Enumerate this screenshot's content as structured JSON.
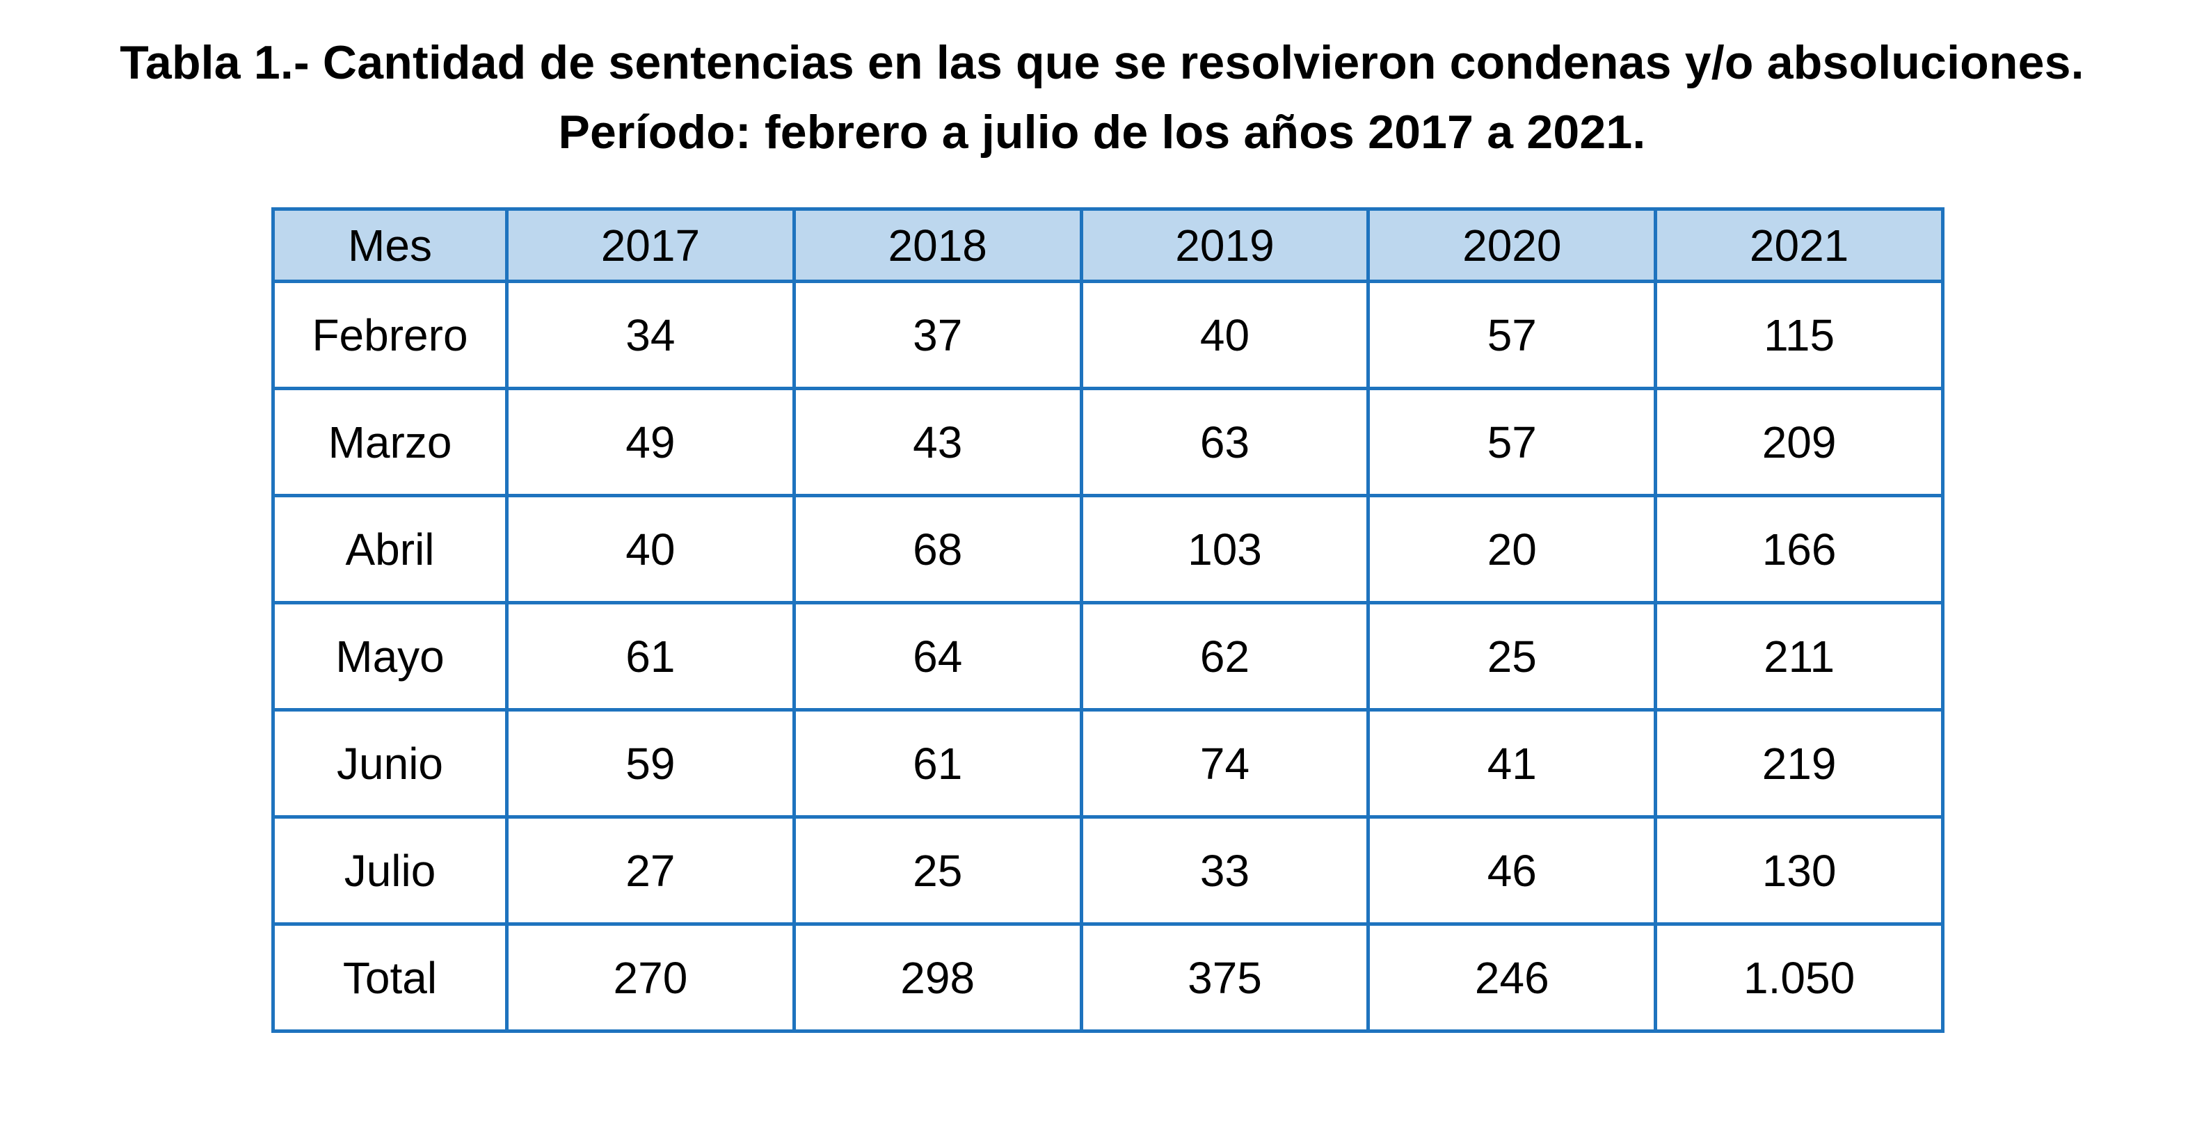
{
  "title": {
    "line1": "Tabla 1.- Cantidad de sentencias en las que se resolvieron condenas y/o absoluciones.",
    "line2": "Período: febrero a julio de los años 2017 a 2021."
  },
  "colors": {
    "border": "#1e73be",
    "header_bg": "#bdd7ee"
  },
  "table": {
    "headers": [
      "Mes",
      "2017",
      "2018",
      "2019",
      "2020",
      "2021"
    ],
    "rows": [
      {
        "mes": "Febrero",
        "values": [
          "34",
          "37",
          "40",
          "57",
          "115"
        ]
      },
      {
        "mes": "Marzo",
        "values": [
          "49",
          "43",
          "63",
          "57",
          "209"
        ]
      },
      {
        "mes": "Abril",
        "values": [
          "40",
          "68",
          "103",
          "20",
          "166"
        ]
      },
      {
        "mes": "Mayo",
        "values": [
          "61",
          "64",
          "62",
          "25",
          "211"
        ]
      },
      {
        "mes": "Junio",
        "values": [
          "59",
          "61",
          "74",
          "41",
          "219"
        ]
      },
      {
        "mes": "Julio",
        "values": [
          "27",
          "25",
          "33",
          "46",
          "130"
        ]
      },
      {
        "mes": "Total",
        "values": [
          "270",
          "298",
          "375",
          "246",
          "1.050"
        ]
      }
    ]
  }
}
